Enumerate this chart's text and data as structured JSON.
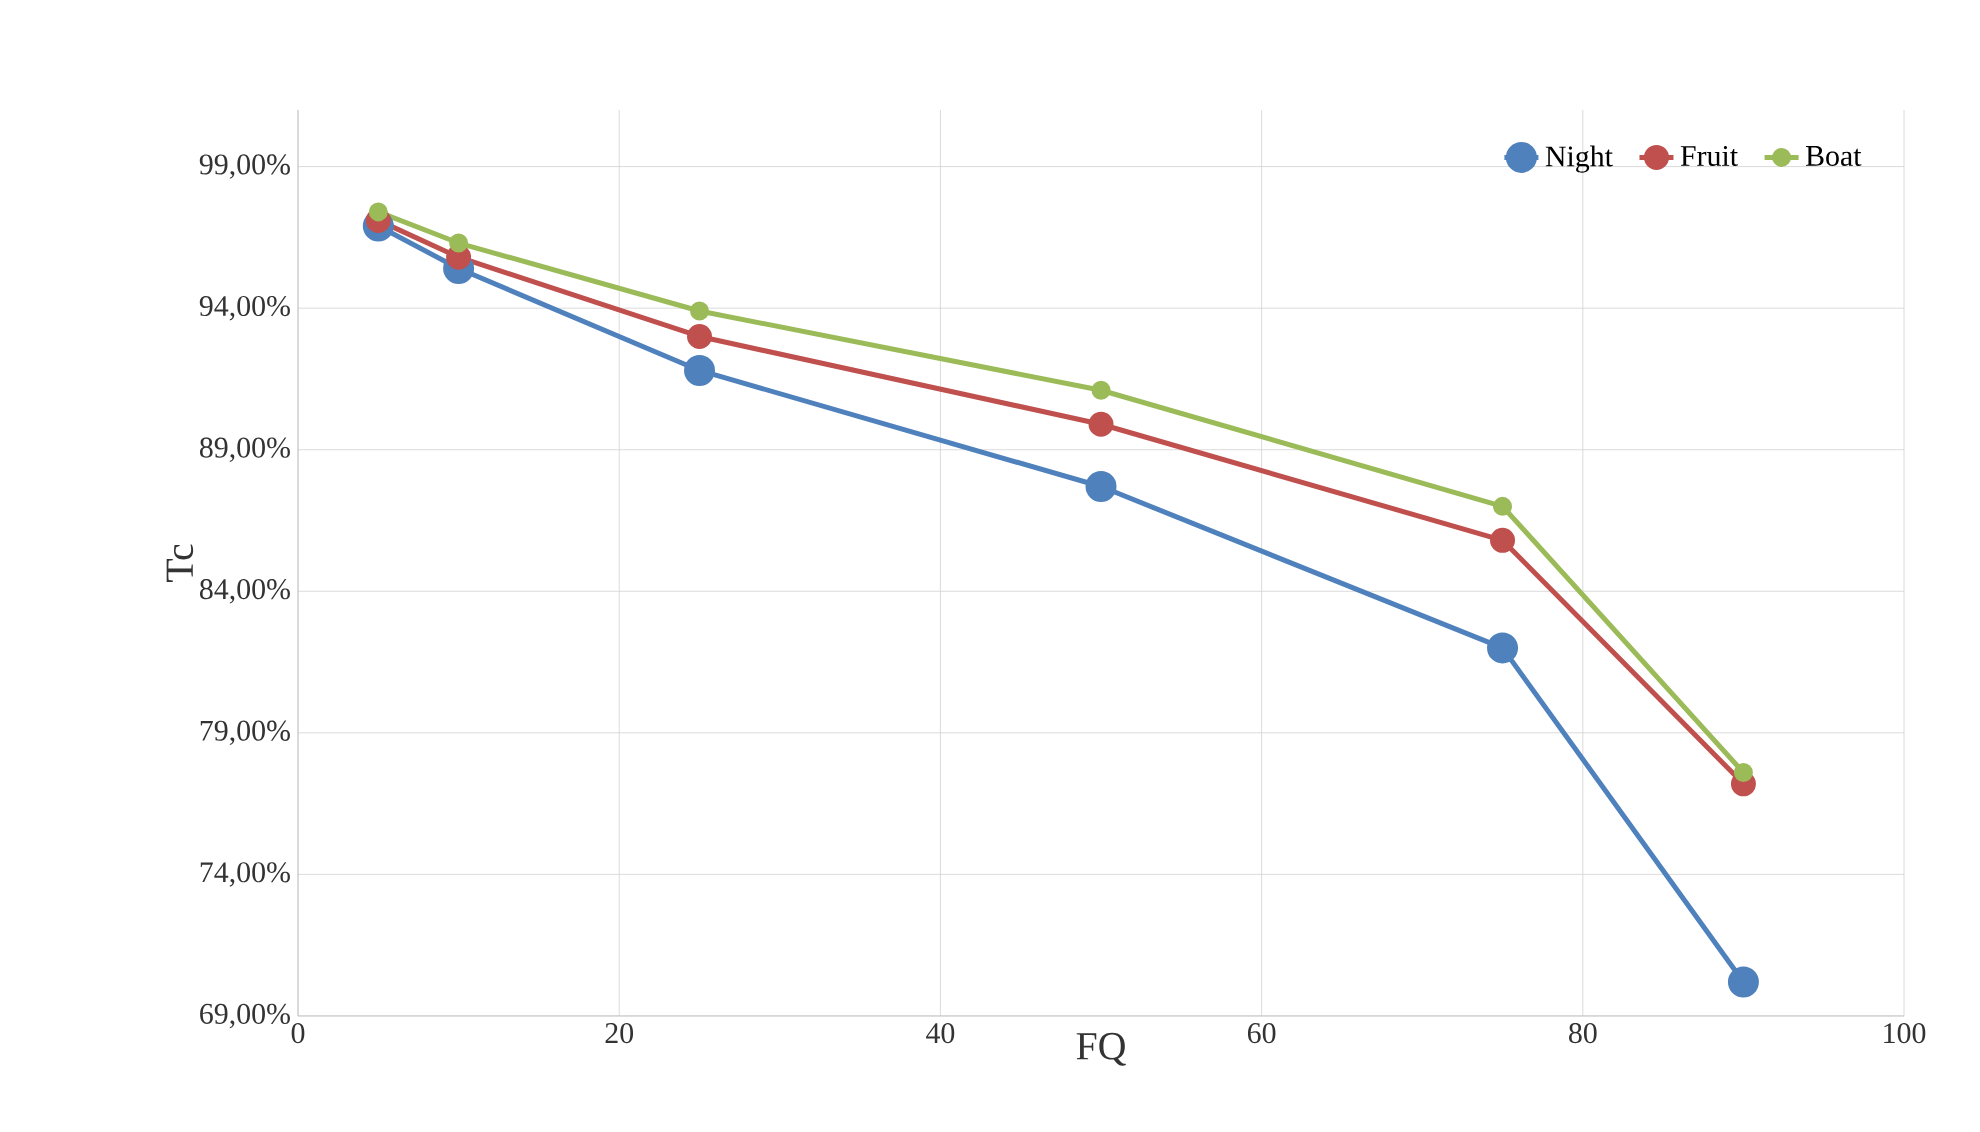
{
  "chart_data": {
    "type": "line",
    "xlabel": "FQ",
    "ylabel": "Tc",
    "x": [
      5,
      10,
      25,
      50,
      75,
      90
    ],
    "series": [
      {
        "name": "Night",
        "color": "#4f81bd",
        "values": [
          96.9,
          95.4,
          91.8,
          87.7,
          82.0,
          70.2
        ]
      },
      {
        "name": "Fruit",
        "color": "#c0504d",
        "values": [
          97.1,
          95.8,
          93.0,
          89.9,
          85.8,
          77.2
        ]
      },
      {
        "name": "Boat",
        "color": "#9bbb59",
        "values": [
          97.4,
          96.3,
          93.9,
          91.1,
          87.0,
          77.6
        ]
      }
    ],
    "xlim": [
      0,
      100
    ],
    "xticks": [
      0,
      20,
      40,
      60,
      80,
      100
    ],
    "ylim": [
      69,
      101
    ],
    "yticks": [
      {
        "value": 69,
        "label": "69,00%"
      },
      {
        "value": 74,
        "label": "74,00%"
      },
      {
        "value": 79,
        "label": "79,00%"
      },
      {
        "value": 84,
        "label": "84,00%"
      },
      {
        "value": 89,
        "label": "89,00%"
      },
      {
        "value": 94,
        "label": "94,00%"
      },
      {
        "value": 99,
        "label": "99,00%"
      }
    ],
    "grid": true,
    "legend": "top right",
    "marker": "circle",
    "line_style": "solid"
  }
}
